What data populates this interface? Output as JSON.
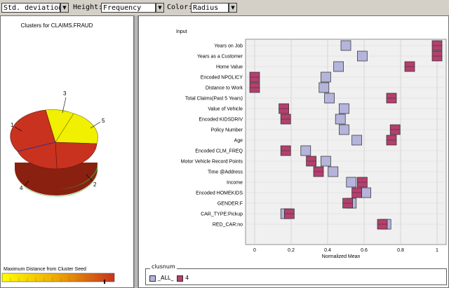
{
  "toolbar": {
    "statistic_value": "Std. deviation",
    "height_label": "Height:",
    "height_value": "Frequency",
    "color_label": "Color:",
    "color_value": "Radius"
  },
  "left_panel": {
    "title": "Clusters for CLAIMS.FRAUD",
    "seed_label": "Maximum Distance from Cluster Seed",
    "pie_labels": [
      "1",
      "2",
      "3",
      "4",
      "5"
    ],
    "colors": {
      "red": "#c8321e",
      "yellow": "#f0f000",
      "green": "#40c040"
    }
  },
  "right_panel": {
    "input_label": "Input",
    "legend_title": "clusnum",
    "legend_items": [
      {
        "label": "_ALL_",
        "color": "#b4b4dc"
      },
      {
        "label": "4",
        "color": "#b4406e"
      }
    ]
  },
  "chart_data": {
    "type": "scatter",
    "xlabel": "Normalized Mean",
    "xlim": [
      -0.05,
      1.05
    ],
    "xticks": [
      "0",
      "0.2",
      "0.4",
      "0.6",
      "0.8",
      "1"
    ],
    "xtick_values": [
      0,
      0.2,
      0.4,
      0.6,
      0.8,
      1
    ],
    "categories": [
      "Years on Job",
      "Years as a Customer",
      "Home Value",
      "Encoded NPOLICY",
      "Distance to Work",
      "Total Claims(Past 5 Years)",
      "Value of Vehicle",
      "Encoded KIDSDRIV",
      "Policy Number",
      "Age",
      "Encoded CLM_FREQ",
      "Motor Vehicle Record Points",
      "Time @Address",
      "Income",
      "Encoded HOMEKIDS",
      "GENDER:F",
      "CAR_TYPE:Pickup",
      "RED_CAR:no"
    ],
    "series": [
      {
        "name": "_ALL_",
        "values": [
          0.5,
          0.59,
          0.46,
          0.39,
          0.38,
          0.41,
          0.49,
          0.47,
          0.49,
          0.56,
          0.28,
          0.39,
          0.43,
          0.53,
          0.61,
          0.53,
          0.17,
          0.72
        ]
      },
      {
        "name": "4",
        "values": [
          1.0,
          1.0,
          0.85,
          0.0,
          0.0,
          0.75,
          0.16,
          0.17,
          0.77,
          0.75,
          0.17,
          0.31,
          0.35,
          0.59,
          0.56,
          0.51,
          0.19,
          0.7
        ]
      }
    ]
  }
}
